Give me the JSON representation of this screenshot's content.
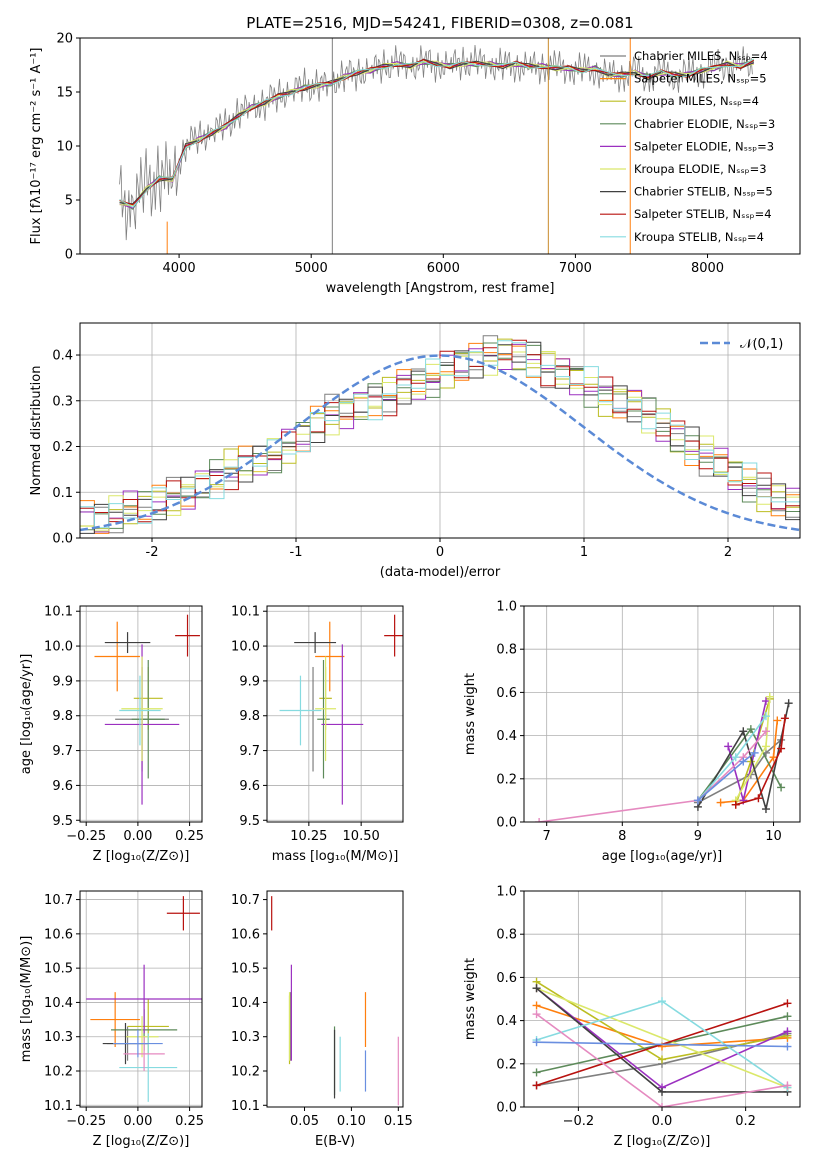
{
  "figure": {
    "title": "PLATE=2516, MJD=54241, FIBERID=0308, z=0.081"
  },
  "model_colors": {
    "Chabrier MILES": "#7f7f7f",
    "Salpeter MILES": "#ff7f0e",
    "Kroupa MILES": "#bcbd22",
    "Chabrier ELODIE": "#5d8a5a",
    "Salpeter ELODIE": "#9b30c0",
    "Kroupa ELODIE": "#dbe86a",
    "Chabrier STELIB": "#404040",
    "Salpeter STELIB": "#b8120f",
    "Kroupa STELIB": "#86dbe0"
  },
  "chart_data": [
    {
      "id": "spectrum",
      "type": "line",
      "title": "PLATE=2516, MJD=54241, FIBERID=0308, z=0.081",
      "xlabel": "wavelength [Angstrom, rest frame]",
      "ylabel": "Flux [fλ10⁻¹⁷ erg cm⁻² s⁻¹ A⁻¹]",
      "xlim": [
        3250,
        8700
      ],
      "ylim": [
        0,
        20
      ],
      "xticks": [
        4000,
        5000,
        6000,
        7000,
        8000
      ],
      "yticks": [
        0,
        5,
        10,
        15,
        20
      ],
      "x": [
        3550,
        3650,
        3750,
        3850,
        3950,
        4050,
        4150,
        4250,
        4350,
        4450,
        4550,
        4650,
        4750,
        4850,
        4950,
        5050,
        5150,
        5250,
        5350,
        5450,
        5550,
        5650,
        5750,
        5850,
        5950,
        6050,
        6150,
        6250,
        6350,
        6450,
        6550,
        6650,
        6750,
        6850,
        6950,
        7050,
        7150,
        7250,
        7350,
        7450,
        7550,
        7650,
        7750,
        7850,
        7950,
        8050,
        8150,
        8250,
        8350
      ],
      "observed": [
        5.0,
        4.6,
        6.2,
        7.2,
        6.8,
        10.2,
        10.8,
        11.4,
        11.8,
        13.0,
        13.6,
        14.0,
        14.8,
        15.0,
        15.6,
        15.4,
        15.8,
        16.6,
        16.8,
        17.0,
        17.4,
        17.6,
        17.4,
        17.8,
        17.6,
        17.4,
        17.8,
        17.6,
        17.6,
        17.4,
        17.6,
        17.2,
        17.4,
        17.2,
        17.2,
        17.0,
        17.2,
        16.4,
        16.6,
        16.8,
        16.4,
        16.8,
        16.6,
        16.6,
        17.0,
        17.2,
        17.6,
        17.4,
        17.8
      ],
      "model": [
        4.8,
        4.4,
        6.0,
        7.0,
        6.9,
        10.0,
        10.6,
        11.2,
        11.8,
        12.8,
        13.6,
        14.0,
        14.6,
        15.0,
        15.4,
        15.6,
        15.8,
        16.4,
        16.8,
        17.0,
        17.4,
        17.6,
        17.4,
        17.8,
        17.6,
        17.4,
        17.6,
        17.6,
        17.6,
        17.4,
        17.6,
        17.4,
        17.4,
        17.2,
        17.2,
        17.0,
        17.2,
        16.6,
        16.6,
        16.8,
        16.4,
        16.8,
        16.6,
        16.6,
        17.0,
        17.2,
        17.6,
        17.4,
        17.8
      ],
      "series": [
        {
          "name": "Chabrier MILES, Nₛₛₚ=4"
        },
        {
          "name": "Salpeter MILES, Nₛₛₚ=5"
        },
        {
          "name": "Kroupa MILES, Nₛₛₚ=4"
        },
        {
          "name": "Chabrier ELODIE, Nₛₛₚ=3"
        },
        {
          "name": "Salpeter ELODIE, Nₛₛₚ=3"
        },
        {
          "name": "Kroupa ELODIE, Nₛₛₚ=3"
        },
        {
          "name": "Chabrier STELIB, Nₛₛₚ=5"
        },
        {
          "name": "Salpeter STELIB, Nₛₛₚ=4"
        },
        {
          "name": "Kroupa STELIB, Nₛₛₚ=4"
        }
      ],
      "vertical_lines": [
        {
          "x": 5160,
          "y": [
            0,
            20
          ]
        },
        {
          "x": 6795,
          "y": [
            0,
            20
          ]
        },
        {
          "x": 7415,
          "y": [
            0,
            20
          ]
        },
        {
          "x": 3910,
          "y": [
            0,
            3
          ]
        }
      ],
      "legend": "upper right"
    },
    {
      "id": "residuals",
      "type": "histogram",
      "xlabel": "(data-model)/error",
      "ylabel": "Normed distribution",
      "xlim": [
        -2.5,
        2.5
      ],
      "ylim": [
        0,
        0.47
      ],
      "xticks": [
        -2,
        -1,
        0,
        1,
        2
      ],
      "yticks": [
        0.0,
        0.1,
        0.2,
        0.3,
        0.4
      ],
      "grid": true,
      "bin_edges_start": -2.5,
      "bin_width": 0.1,
      "histogram": [
        0.042,
        0.038,
        0.05,
        0.06,
        0.065,
        0.078,
        0.09,
        0.1,
        0.115,
        0.13,
        0.15,
        0.16,
        0.17,
        0.18,
        0.2,
        0.22,
        0.25,
        0.27,
        0.28,
        0.29,
        0.3,
        0.31,
        0.33,
        0.34,
        0.35,
        0.37,
        0.38,
        0.39,
        0.4,
        0.41,
        0.4,
        0.39,
        0.37,
        0.36,
        0.35,
        0.33,
        0.31,
        0.3,
        0.29,
        0.27,
        0.25,
        0.22,
        0.2,
        0.18,
        0.16,
        0.14,
        0.12,
        0.1,
        0.085,
        0.07
      ],
      "gaussian": {
        "name": "𝒩(0,1)",
        "mu": 0,
        "sigma": 1
      },
      "legend": "upper right"
    },
    {
      "id": "age-vs-Z",
      "type": "errorbar",
      "xlabel": "Z [log₁₀(Z/Z⊙)]",
      "ylabel": "age  [log₁₀(age/yr)]",
      "xlim": [
        -0.28,
        0.31
      ],
      "ylim": [
        9.495,
        10.115
      ],
      "xticks": [
        -0.25,
        0.0,
        0.25
      ],
      "xticklabels": [
        "−0.25",
        "0.00",
        "0.25"
      ],
      "yticks": [
        9.5,
        9.6,
        9.7,
        9.8,
        9.9,
        10.0,
        10.1
      ],
      "grid": true,
      "points": [
        {
          "model": "Chabrier MILES",
          "x": 0.02,
          "y": 9.79,
          "xerr": 0.13,
          "yerr": 0.15
        },
        {
          "model": "Salpeter MILES",
          "x": -0.1,
          "y": 9.97,
          "xerr": 0.11,
          "yerr": 0.1
        },
        {
          "model": "Kroupa MILES",
          "x": 0.05,
          "y": 9.85,
          "xerr": 0.07,
          "yerr": 0.09
        },
        {
          "model": "Chabrier ELODIE",
          "x": 0.05,
          "y": 9.79,
          "xerr": 0.08,
          "yerr": 0.17
        },
        {
          "model": "Salpeter ELODIE",
          "x": 0.02,
          "y": 9.775,
          "xerr": 0.18,
          "yerr": 0.23
        },
        {
          "model": "Kroupa ELODIE",
          "x": 0.02,
          "y": 9.82,
          "xerr": 0.1,
          "yerr": 0.15
        },
        {
          "model": "Chabrier STELIB",
          "x": -0.05,
          "y": 10.01,
          "xerr": 0.11,
          "yerr": 0.03
        },
        {
          "model": "Salpeter STELIB",
          "x": 0.24,
          "y": 10.03,
          "xerr": 0.06,
          "yerr": 0.06
        },
        {
          "model": "Kroupa STELIB",
          "x": 0.01,
          "y": 9.815,
          "xerr": 0.1,
          "yerr": 0.1
        }
      ]
    },
    {
      "id": "age-vs-mass",
      "type": "errorbar",
      "xlabel": "mass [log₁₀(M/M⊙)]",
      "ylabel": "",
      "xlim": [
        10.05,
        10.7
      ],
      "ylim": [
        9.495,
        10.115
      ],
      "xticks": [
        10.25,
        10.5
      ],
      "xticklabels": [
        "10.25",
        "10.50"
      ],
      "yticks": [
        9.5,
        9.6,
        9.7,
        9.8,
        9.9,
        10.0,
        10.1
      ],
      "grid": true,
      "points": [
        {
          "model": "Chabrier MILES",
          "x": 10.27,
          "y": 9.79,
          "yerr": 0.15
        },
        {
          "model": "Salpeter MILES",
          "x": 10.35,
          "y": 9.97,
          "xerr": 0.07,
          "yerr": 0.1
        },
        {
          "model": "Kroupa MILES",
          "x": 10.33,
          "y": 9.85,
          "xerr": 0.03,
          "yerr": 0.09
        },
        {
          "model": "Chabrier ELODIE",
          "x": 10.32,
          "y": 9.79,
          "xerr": 0.03,
          "yerr": 0.17
        },
        {
          "model": "Salpeter ELODIE",
          "x": 10.41,
          "y": 9.775,
          "xerr": 0.1,
          "yerr": 0.23
        },
        {
          "model": "Kroupa ELODIE",
          "x": 10.33,
          "y": 9.82,
          "xerr": 0.05,
          "yerr": 0.15
        },
        {
          "model": "Chabrier STELIB",
          "x": 10.28,
          "y": 10.01,
          "xerr": 0.1,
          "yerr": 0.03
        },
        {
          "model": "Salpeter STELIB",
          "x": 10.66,
          "y": 10.03,
          "xerr": 0.05,
          "yerr": 0.06
        },
        {
          "model": "Kroupa STELIB",
          "x": 10.21,
          "y": 9.815,
          "xerr": 0.1,
          "yerr": 0.1
        }
      ]
    },
    {
      "id": "mass-weight-vs-age",
      "type": "line",
      "xlabel": "age  [log₁₀(age/yr)]",
      "ylabel": "mass weight",
      "xlim": [
        6.7,
        10.35
      ],
      "ylim": [
        0,
        1
      ],
      "xticks": [
        7,
        8,
        9,
        10
      ],
      "yticks": [
        0.0,
        0.2,
        0.4,
        0.6,
        0.8,
        1.0
      ],
      "grid": true,
      "series": [
        {
          "model": "Chabrier MILES",
          "x": [
            9.0,
            9.7,
            9.9,
            10.1
          ],
          "y": [
            0.09,
            0.22,
            0.32,
            0.38
          ]
        },
        {
          "model": "Salpeter MILES",
          "x": [
            9.3,
            9.6,
            10.0,
            10.05
          ],
          "y": [
            0.09,
            0.1,
            0.3,
            0.47
          ]
        },
        {
          "model": "Kroupa MILES",
          "x": [
            9.5,
            9.7,
            9.95
          ],
          "y": [
            0.08,
            0.28,
            0.57
          ]
        },
        {
          "model": "Chabrier ELODIE",
          "x": [
            9.0,
            9.7,
            10.1
          ],
          "y": [
            0.1,
            0.43,
            0.16
          ]
        },
        {
          "model": "Salpeter ELODIE",
          "x": [
            9.4,
            9.6,
            9.9
          ],
          "y": [
            0.35,
            0.1,
            0.56
          ]
        },
        {
          "model": "Kroupa ELODIE",
          "x": [
            9.5,
            9.9,
            9.95
          ],
          "y": [
            0.1,
            0.35,
            0.58
          ]
        },
        {
          "model": "Chabrier STELIB",
          "x": [
            9.0,
            9.6,
            9.9,
            10.2
          ],
          "y": [
            0.07,
            0.42,
            0.06,
            0.55
          ]
        },
        {
          "model": "Salpeter STELIB",
          "x": [
            9.5,
            9.8,
            10.1,
            10.15
          ],
          "y": [
            0.08,
            0.11,
            0.34,
            0.48
          ]
        },
        {
          "model": "Kroupa STELIB",
          "x": [
            9.0,
            9.5,
            9.9
          ],
          "y": [
            0.1,
            0.3,
            0.49
          ]
        },
        {
          "model": "pink",
          "x": [
            6.9,
            9.0,
            9.6,
            9.9
          ],
          "y": [
            0.0,
            0.1,
            0.3,
            0.42
          ]
        },
        {
          "model": "blue",
          "x": [
            9.0,
            9.6,
            9.75
          ],
          "y": [
            0.1,
            0.28,
            0.32
          ]
        }
      ]
    },
    {
      "id": "mass-vs-Z",
      "type": "errorbar",
      "xlabel": "Z [log₁₀(Z/Z⊙)]",
      "ylabel": "mass [log₁₀(M/M⊙)]",
      "xlim": [
        -0.28,
        0.31
      ],
      "ylim": [
        10.095,
        10.725
      ],
      "xticks": [
        -0.25,
        0.0,
        0.25
      ],
      "xticklabels": [
        "−0.25",
        "0.00",
        "0.25"
      ],
      "yticks": [
        10.1,
        10.2,
        10.3,
        10.4,
        10.5,
        10.6,
        10.7
      ],
      "grid": true,
      "points": [
        {
          "model": "Chabrier MILES",
          "x": -0.05,
          "y": 10.28,
          "xerr": 0.1,
          "yerr": 0.05
        },
        {
          "model": "Salpeter MILES",
          "x": -0.11,
          "y": 10.35,
          "xerr": 0.12,
          "yerr": 0.08
        },
        {
          "model": "Kroupa MILES",
          "x": 0.05,
          "y": 10.33,
          "xerr": 0.1,
          "yerr": 0.08
        },
        {
          "model": "Chabrier ELODIE",
          "x": 0.03,
          "y": 10.32,
          "xerr": 0.16,
          "yerr": 0.06
        },
        {
          "model": "Salpeter ELODIE",
          "x": 0.03,
          "y": 10.41,
          "xerr": 0.28,
          "yerr": 0.1
        },
        {
          "model": "Kroupa ELODIE",
          "x": 0.02,
          "y": 10.3,
          "xerr": 0.08,
          "yerr": 0.06
        },
        {
          "model": "Chabrier STELIB",
          "x": -0.06,
          "y": 10.28,
          "xerr": 0.11,
          "yerr": 0.06
        },
        {
          "model": "Salpeter STELIB",
          "x": 0.22,
          "y": 10.66,
          "xerr": 0.08,
          "yerr": 0.05
        },
        {
          "model": "Kroupa STELIB",
          "x": 0.05,
          "y": 10.21,
          "xerr": 0.14,
          "yerr": 0.1
        },
        {
          "model": "pink",
          "x": 0.03,
          "y": 10.25,
          "xerr": 0.1,
          "yerr": 0.05
        },
        {
          "model": "blue",
          "x": 0.0,
          "y": 10.28,
          "xerr": 0.12,
          "yerr": 0.04
        }
      ]
    },
    {
      "id": "mass-vs-ebv",
      "type": "errorbar",
      "xlabel": "E(B-V)",
      "ylabel": "",
      "xlim": [
        0.01,
        0.155
      ],
      "ylim": [
        10.095,
        10.725
      ],
      "xticks": [
        0.05,
        0.1,
        0.15
      ],
      "xticklabels": [
        "0.05",
        "0.10",
        "0.15"
      ],
      "yticks": [
        10.1,
        10.2,
        10.3,
        10.4,
        10.5,
        10.6,
        10.7
      ],
      "grid": false,
      "points": [
        {
          "model": "Chabrier MILES",
          "x": 0.035,
          "y": 10.33,
          "yerr": 0.1
        },
        {
          "model": "Salpeter MILES",
          "x": 0.115,
          "y": 10.35,
          "yerr": 0.08
        },
        {
          "model": "Kroupa MILES",
          "x": 0.034,
          "y": 10.32,
          "yerr": 0.1
        },
        {
          "model": "Chabrier ELODIE",
          "x": 0.082,
          "y": 10.23,
          "yerr": 0.1
        },
        {
          "model": "Salpeter ELODIE",
          "x": 0.036,
          "y": 10.37,
          "yerr": 0.14
        },
        {
          "model": "Kroupa ELODIE",
          "x": 0.034,
          "y": 10.33,
          "yerr": 0.1
        },
        {
          "model": "Chabrier STELIB",
          "x": 0.082,
          "y": 10.22,
          "yerr": 0.1
        },
        {
          "model": "Salpeter STELIB",
          "x": 0.015,
          "y": 10.66,
          "yerr": 0.05
        },
        {
          "model": "Kroupa STELIB",
          "x": 0.088,
          "y": 10.22,
          "yerr": 0.08
        },
        {
          "model": "pink",
          "x": 0.15,
          "y": 10.2,
          "yerr": 0.1
        },
        {
          "model": "blue",
          "x": 0.115,
          "y": 10.2,
          "yerr": 0.06
        }
      ]
    },
    {
      "id": "mass-weight-vs-Z",
      "type": "line",
      "xlabel": "Z [log₁₀(Z/Z⊙)]",
      "ylabel": "mass weight",
      "xlim": [
        -0.33,
        0.33
      ],
      "ylim": [
        0,
        1
      ],
      "xticks": [
        -0.2,
        0.0,
        0.2
      ],
      "xticklabels": [
        "−0.2",
        "0.0",
        "0.2"
      ],
      "yticks": [
        0.0,
        0.2,
        0.4,
        0.6,
        0.8,
        1.0
      ],
      "grid": true,
      "series": [
        {
          "model": "Chabrier MILES",
          "x": [
            -0.3,
            0.0,
            0.3
          ],
          "y": [
            0.1,
            0.2,
            0.34
          ]
        },
        {
          "model": "Salpeter MILES",
          "x": [
            -0.3,
            0.0,
            0.3
          ],
          "y": [
            0.47,
            0.28,
            0.32
          ]
        },
        {
          "model": "Kroupa MILES",
          "x": [
            -0.3,
            0.0,
            0.3
          ],
          "y": [
            0.58,
            0.22,
            0.33
          ]
        },
        {
          "model": "Chabrier ELODIE",
          "x": [
            -0.3,
            0.3
          ],
          "y": [
            0.16,
            0.42
          ]
        },
        {
          "model": "Salpeter ELODIE",
          "x": [
            -0.3,
            0.0,
            0.3
          ],
          "y": [
            0.55,
            0.09,
            0.35
          ]
        },
        {
          "model": "Kroupa ELODIE",
          "x": [
            -0.3,
            0.3
          ],
          "y": [
            0.55,
            0.09
          ]
        },
        {
          "model": "Chabrier STELIB",
          "x": [
            -0.3,
            0.0,
            0.3
          ],
          "y": [
            0.55,
            0.07,
            0.07
          ]
        },
        {
          "model": "Salpeter STELIB",
          "x": [
            -0.3,
            0.3
          ],
          "y": [
            0.1,
            0.48
          ]
        },
        {
          "model": "Kroupa STELIB",
          "x": [
            -0.3,
            0.0,
            0.3
          ],
          "y": [
            0.31,
            0.49,
            0.09
          ]
        },
        {
          "model": "pink",
          "x": [
            -0.3,
            0.0,
            0.3
          ],
          "y": [
            0.43,
            0.0,
            0.1
          ]
        },
        {
          "model": "blue",
          "x": [
            -0.3,
            0.3
          ],
          "y": [
            0.3,
            0.28
          ]
        }
      ]
    }
  ]
}
